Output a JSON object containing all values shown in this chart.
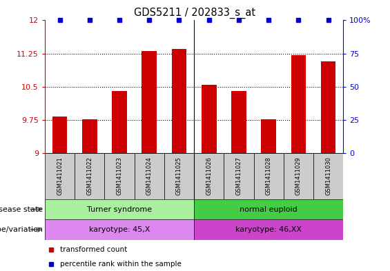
{
  "title": "GDS5211 / 202833_s_at",
  "samples": [
    "GSM1411021",
    "GSM1411022",
    "GSM1411023",
    "GSM1411024",
    "GSM1411025",
    "GSM1411026",
    "GSM1411027",
    "GSM1411028",
    "GSM1411029",
    "GSM1411030"
  ],
  "transformed_count": [
    9.82,
    9.77,
    10.4,
    11.3,
    11.35,
    10.55,
    10.4,
    9.77,
    11.22,
    11.08
  ],
  "percentile_rank": [
    100,
    100,
    100,
    100,
    100,
    100,
    100,
    100,
    100,
    100
  ],
  "ylim_left": [
    9,
    12
  ],
  "ylim_right": [
    0,
    100
  ],
  "yticks_left": [
    9,
    9.75,
    10.5,
    11.25,
    12
  ],
  "yticks_right": [
    0,
    25,
    50,
    75,
    100
  ],
  "bar_color": "#cc0000",
  "percentile_color": "#0000cc",
  "disease_state_groups": [
    {
      "label": "Turner syndrome",
      "start": 0,
      "end": 5,
      "color": "#aaeea0"
    },
    {
      "label": "normal euploid",
      "start": 5,
      "end": 10,
      "color": "#44cc44"
    }
  ],
  "genotype_groups": [
    {
      "label": "karyotype: 45,X",
      "start": 0,
      "end": 5,
      "color": "#dd88ee"
    },
    {
      "label": "karyotype: 46,XX",
      "start": 5,
      "end": 10,
      "color": "#cc44cc"
    }
  ],
  "legend_items": [
    {
      "label": "transformed count",
      "color": "#cc0000"
    },
    {
      "label": "percentile rank within the sample",
      "color": "#0000cc"
    }
  ],
  "label_disease_state": "disease state",
  "label_genotype": "genotype/variation",
  "sample_box_color": "#cccccc",
  "background_color": "#ffffff"
}
